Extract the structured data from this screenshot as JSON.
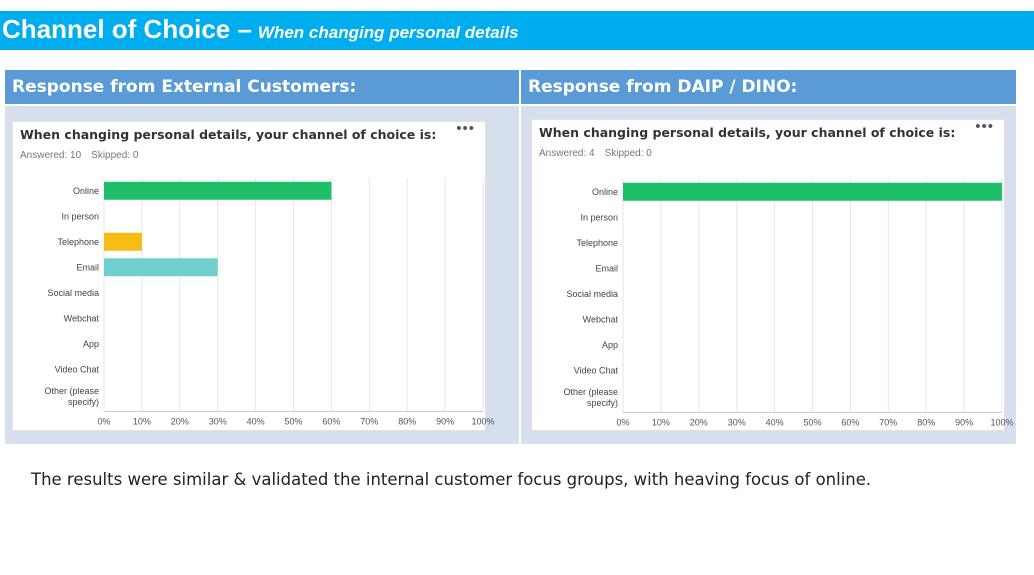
{
  "slide": {
    "title": "Channel of Choice –",
    "subtitle": "When changing personal details",
    "left_header": "Response from External Customers:",
    "right_header": "Response from DAIP / DINO:",
    "footnote": "The results were similar & validated the internal customer focus groups, with heaving focus of online."
  },
  "colors": {
    "green": "#1fbf6a",
    "yellow": "#f8bc16",
    "teal": "#6fcfcf",
    "title_bar": "#00adef",
    "header": "#5b9bd5"
  },
  "cards": [
    {
      "title": "When changing personal details, your channel of choice is:",
      "answered": "Answered: 10",
      "skipped": "Skipped: 0"
    },
    {
      "title": "When changing personal details, your channel of choice is:",
      "answered": "Answered: 4",
      "skipped": "Skipped: 0"
    }
  ],
  "chart_data": [
    {
      "type": "bar",
      "orientation": "horizontal",
      "categories": [
        "Online",
        "In person",
        "Telephone",
        "Email",
        "Social media",
        "Webchat",
        "App",
        "Video Chat",
        "Other (please specify)"
      ],
      "values": [
        60,
        0,
        10,
        30,
        0,
        0,
        0,
        0,
        0
      ],
      "bar_colors": [
        "#1fbf6a",
        "#1fbf6a",
        "#f8bc16",
        "#6fcfcf",
        "#1fbf6a",
        "#1fbf6a",
        "#1fbf6a",
        "#1fbf6a",
        "#1fbf6a"
      ],
      "ticks": [
        "0%",
        "10%",
        "20%",
        "30%",
        "40%",
        "50%",
        "60%",
        "70%",
        "80%",
        "90%",
        "100%"
      ],
      "xlim": [
        0,
        100
      ],
      "grid": true
    },
    {
      "type": "bar",
      "orientation": "horizontal",
      "categories": [
        "Online",
        "In person",
        "Telephone",
        "Email",
        "Social media",
        "Webchat",
        "App",
        "Video Chat",
        "Other (please specify)"
      ],
      "values": [
        100,
        0,
        0,
        0,
        0,
        0,
        0,
        0,
        0
      ],
      "bar_colors": [
        "#1fbf6a",
        "#1fbf6a",
        "#1fbf6a",
        "#1fbf6a",
        "#1fbf6a",
        "#1fbf6a",
        "#1fbf6a",
        "#1fbf6a",
        "#1fbf6a"
      ],
      "ticks": [
        "0%",
        "10%",
        "20%",
        "30%",
        "40%",
        "50%",
        "60%",
        "70%",
        "80%",
        "90%",
        "100%"
      ],
      "xlim": [
        0,
        100
      ],
      "grid": true
    }
  ]
}
